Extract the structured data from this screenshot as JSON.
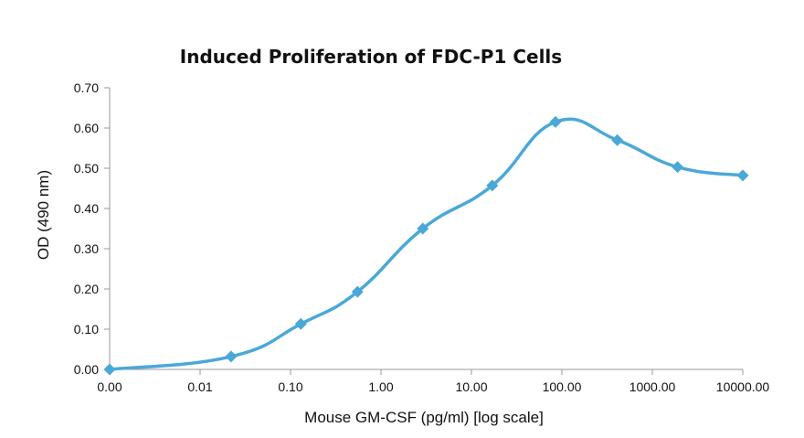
{
  "chart_data": {
    "type": "line",
    "title": "Induced Proliferation of FDC-P1 Cells",
    "xlabel": "Mouse GM-CSF (pg/ml) [log scale]",
    "ylabel": "OD (490 nm)",
    "x_scale": "log",
    "x_ticks": [
      "0.00",
      "0.01",
      "0.10",
      "1.00",
      "10.00",
      "100.00",
      "1000.00",
      "10000.00"
    ],
    "y_ticks": [
      "0.00",
      "0.10",
      "0.20",
      "0.30",
      "0.40",
      "0.50",
      "0.60",
      "0.70"
    ],
    "ylim": [
      0,
      0.7
    ],
    "grid": false,
    "legend": "none",
    "line_color": "#4aa8d8",
    "marker": "diamond",
    "series": [
      {
        "x": [
          0.001,
          0.022,
          0.13,
          0.55,
          2.9,
          17,
          85,
          410,
          1900,
          10000
        ],
        "y": [
          0.0,
          0.032,
          0.113,
          0.193,
          0.35,
          0.457,
          0.615,
          0.57,
          0.503,
          0.482
        ]
      }
    ]
  }
}
